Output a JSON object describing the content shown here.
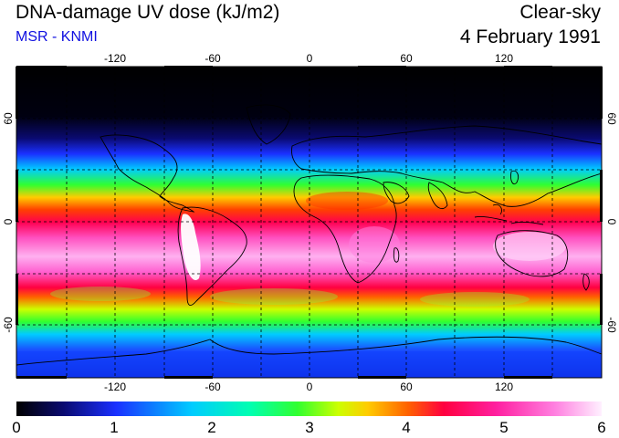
{
  "header": {
    "title": "DNA-damage UV dose (kJ/m2)",
    "source": "MSR - KNMI",
    "sky_condition": "Clear-sky",
    "date": "4 February 1991"
  },
  "map": {
    "lon_ticks": [
      "-120",
      "-60",
      "0",
      "60",
      "120"
    ],
    "lat_ticks": [
      "60",
      "0",
      "-60"
    ],
    "colors": {
      "text_accent": "#1010e0",
      "coastline": "#000000",
      "gridline": "#000000"
    }
  },
  "colorbar": {
    "ticks": [
      "0",
      "1",
      "2",
      "3",
      "4",
      "5",
      "6"
    ],
    "colors": [
      "#000000",
      "#0a0a70",
      "#1a30ff",
      "#00ccff",
      "#00ffb0",
      "#30ff30",
      "#ccff00",
      "#ffcc00",
      "#ff6000",
      "#ff0040",
      "#ff20a0",
      "#ff80e0",
      "#fff0ff"
    ]
  }
}
